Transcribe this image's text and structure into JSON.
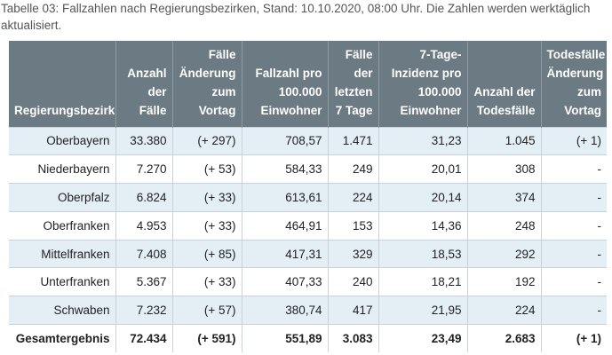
{
  "caption": "Tabelle 03: Fallzahlen nach Regierungsbezirken, Stand: 10.10.2020, 08:00 Uhr. Die Zahlen werden werktäglich aktualisiert.",
  "table": {
    "headers": [
      [
        "Regierungsbezirk"
      ],
      [
        "Anzahl",
        "der",
        "Fälle"
      ],
      [
        "Fälle",
        "Änderung",
        "zum",
        "Vortag"
      ],
      [
        "Fallzahl pro",
        "100.000",
        "Einwohner"
      ],
      [
        "Fälle",
        "der",
        "letzten",
        "7 Tage"
      ],
      [
        "7-Tage-",
        "Inzidenz pro",
        "100.000",
        "Einwohner"
      ],
      [
        "Anzahl der",
        "Todesfälle"
      ],
      [
        "Todesfälle",
        "Änderung",
        "zum Vortag"
      ]
    ],
    "rows": [
      [
        "Oberbayern",
        "33.380",
        "(+ 297)",
        "708,57",
        "1.471",
        "31,23",
        "1.045",
        "(+ 1)"
      ],
      [
        "Niederbayern",
        "7.270",
        "(+ 53)",
        "584,33",
        "249",
        "20,01",
        "308",
        "-"
      ],
      [
        "Oberpfalz",
        "6.824",
        "(+ 33)",
        "613,61",
        "224",
        "20,14",
        "374",
        "-"
      ],
      [
        "Oberfranken",
        "4.953",
        "(+ 33)",
        "464,91",
        "153",
        "14,36",
        "248",
        "-"
      ],
      [
        "Mittelfranken",
        "7.408",
        "(+ 85)",
        "417,31",
        "329",
        "18,53",
        "292",
        "-"
      ],
      [
        "Unterfranken",
        "5.367",
        "(+ 33)",
        "407,33",
        "240",
        "18,21",
        "192",
        "-"
      ],
      [
        "Schwaben",
        "7.232",
        "(+ 57)",
        "380,74",
        "417",
        "21,95",
        "224",
        "-"
      ]
    ],
    "total": [
      "Gesamtergebnis",
      "72.434",
      "(+ 591)",
      "551,89",
      "3.083",
      "23,49",
      "2.683",
      "(+ 1)"
    ]
  },
  "colors": {
    "header_bg": "#6c7a83",
    "header_text": "#ffffff",
    "row_shade": "#e4eef5",
    "grid": "#c9d2d8"
  }
}
